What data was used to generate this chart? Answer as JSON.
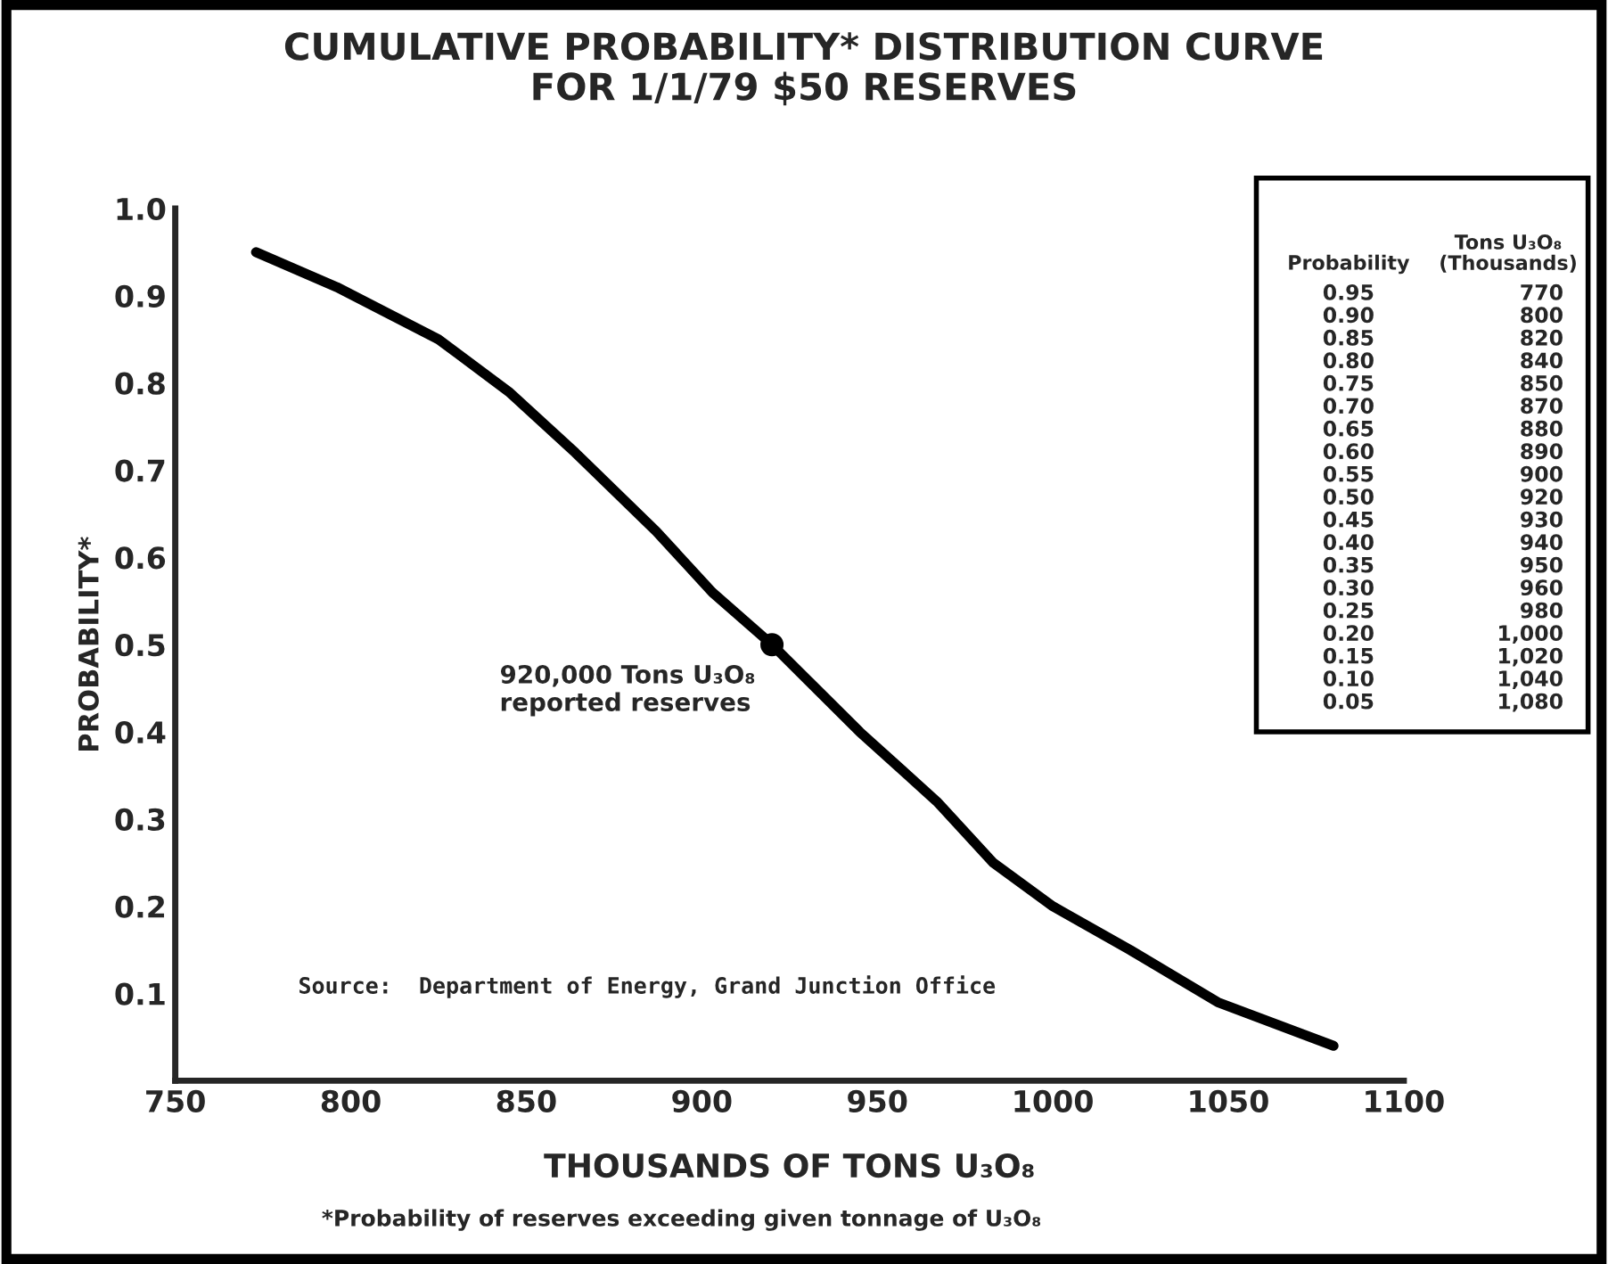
{
  "chart_data": {
    "type": "line",
    "title": "CUMULATIVE PROBABILITY* DISTRIBUTION CURVE\nFOR 1/1/79 $50 RESERVES",
    "xlabel": "THOUSANDS OF TONS U₃O₈",
    "ylabel": "PROBABILITY*",
    "series": [
      {
        "color": "#000000",
        "x": [
          773,
          796,
          825,
          845,
          864,
          887,
          903,
          920,
          945,
          967,
          983,
          1000,
          1022,
          1047,
          1080
        ],
        "values": [
          0.95,
          0.91,
          0.85,
          0.79,
          0.72,
          0.63,
          0.56,
          0.5,
          0.4,
          0.32,
          0.25,
          0.2,
          0.15,
          0.09,
          0.04
        ]
      },
      {
        "type": "scatter",
        "color": "#000000",
        "marker": "circle",
        "x": [
          920
        ],
        "values": [
          0.5
        ]
      }
    ],
    "xlim": [
      750,
      1100
    ],
    "xticks": [
      750,
      800,
      850,
      900,
      950,
      1000,
      1050,
      1100
    ],
    "ylim": [
      0,
      1.0
    ],
    "yticks": [
      0.1,
      0.2,
      0.3,
      0.4,
      0.5,
      0.6,
      0.7,
      0.8,
      0.9,
      {
        "value": 1.0,
        "label": "1.0"
      }
    ],
    "grid": false,
    "line_style": "solid",
    "annotations": [
      {
        "text": "920,000 Tons U₃O₈\nreported reserves",
        "x": 920,
        "y": 0.5
      },
      "Source:  Department of Energy, Grand Junction Office",
      "*Probability of reserves exceeding given tonnage of U₃O₈",
      "Probability",
      "Tons U₃O₈\n(Thousands)",
      "0.95",
      "770",
      "0.90",
      "800",
      "0.85",
      "820",
      "0.80",
      "840",
      "0.75",
      "850",
      "0.70",
      "870",
      "0.65",
      "880",
      "0.60",
      "890",
      "0.55",
      "900",
      "0.50",
      "920",
      "0.45",
      "930",
      "0.40",
      "940",
      "0.35",
      "950",
      "0.30",
      "960",
      "0.25",
      "980",
      "0.20",
      "1,000",
      "0.15",
      "1,020",
      "0.10",
      "1,040",
      "0.05",
      "1,080"
    ]
  }
}
